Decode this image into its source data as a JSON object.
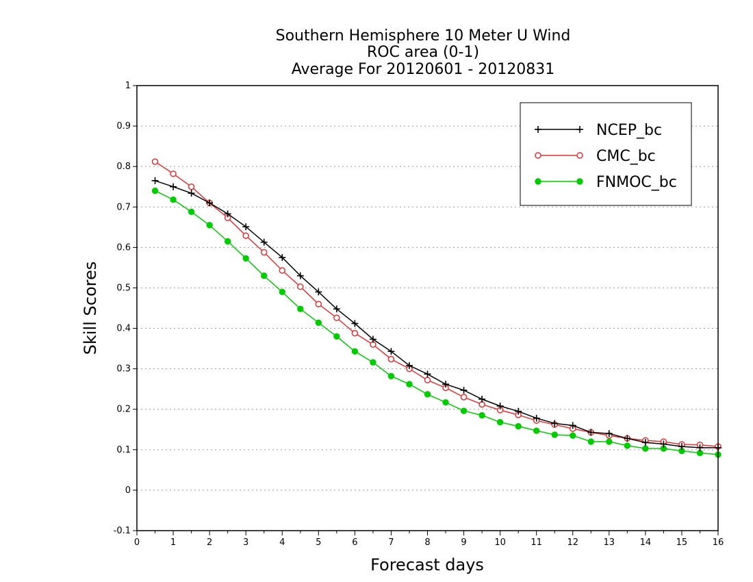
{
  "chart_data": {
    "type": "line",
    "title_lines": [
      "Southern Hemisphere 10 Meter U Wind",
      "ROC area (0-1)",
      "Average For 20120601 - 20120831"
    ],
    "xlabel": "Forecast days",
    "ylabel": "Skill Scores",
    "xlim": [
      0,
      16
    ],
    "ylim": [
      -0.1,
      1
    ],
    "x_ticks": [
      "0",
      "1",
      "2",
      "3",
      "4",
      "5",
      "6",
      "7",
      "8",
      "9",
      "10",
      "11",
      "12",
      "13",
      "14",
      "15",
      "16"
    ],
    "y_ticks": [
      "-0.1",
      "0",
      "0.1",
      "0.2",
      "0.3",
      "0.4",
      "0.5",
      "0.6",
      "0.7",
      "0.8",
      "0.9",
      "1"
    ],
    "grid": true,
    "legend_position": "top-right",
    "x": [
      0.5,
      1,
      1.5,
      2,
      2.5,
      3,
      3.5,
      4,
      4.5,
      5,
      5.5,
      6,
      6.5,
      7,
      7.5,
      8,
      8.5,
      9,
      9.5,
      10,
      10.5,
      11,
      11.5,
      12,
      12.5,
      13,
      13.5,
      14,
      14.5,
      15,
      15.5,
      16
    ],
    "series": [
      {
        "name": "NCEP_bc",
        "color": "#000000",
        "marker": "plus",
        "values": [
          0.765,
          0.75,
          0.734,
          0.71,
          0.683,
          0.651,
          0.613,
          0.575,
          0.53,
          0.49,
          0.448,
          0.412,
          0.373,
          0.343,
          0.308,
          0.287,
          0.262,
          0.247,
          0.225,
          0.208,
          0.195,
          0.178,
          0.165,
          0.16,
          0.143,
          0.14,
          0.128,
          0.118,
          0.114,
          0.108,
          0.105,
          0.105
        ]
      },
      {
        "name": "CMC_bc",
        "color": "#e83030",
        "marker": "open-circle",
        "values": [
          0.812,
          0.782,
          0.75,
          0.71,
          0.673,
          0.629,
          0.588,
          0.543,
          0.503,
          0.46,
          0.426,
          0.388,
          0.36,
          0.324,
          0.3,
          0.272,
          0.253,
          0.23,
          0.212,
          0.198,
          0.186,
          0.172,
          0.162,
          0.152,
          0.143,
          0.135,
          0.128,
          0.123,
          0.12,
          0.113,
          0.112,
          0.108
        ]
      },
      {
        "name": "FNMOC_bc",
        "color": "#00cc00",
        "marker": "filled-circle",
        "values": [
          0.74,
          0.718,
          0.688,
          0.655,
          0.615,
          0.573,
          0.53,
          0.49,
          0.448,
          0.414,
          0.38,
          0.343,
          0.316,
          0.282,
          0.262,
          0.237,
          0.217,
          0.196,
          0.185,
          0.168,
          0.158,
          0.147,
          0.137,
          0.135,
          0.12,
          0.12,
          0.11,
          0.103,
          0.103,
          0.097,
          0.092,
          0.088
        ]
      }
    ]
  }
}
